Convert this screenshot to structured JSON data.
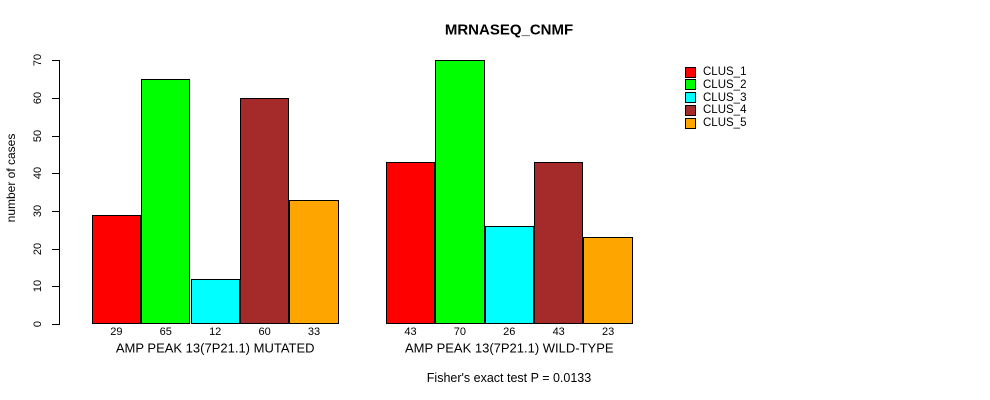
{
  "chart_data": {
    "type": "bar",
    "title": "MRNASEQ_CNMF",
    "ylabel": "number of cases",
    "xlabel": "",
    "ylim": [
      0,
      70
    ],
    "yticks": [
      0,
      10,
      20,
      30,
      40,
      50,
      60,
      70
    ],
    "grid": false,
    "legend_position": "right",
    "bar_value_labels_shown": true,
    "categories": [
      "AMP PEAK 13(7P21.1) MUTATED",
      "AMP PEAK 13(7P21.1) WILD-TYPE"
    ],
    "series": [
      {
        "name": "CLUS_1",
        "color": "#FF0000",
        "values": [
          29,
          43
        ]
      },
      {
        "name": "CLUS_2",
        "color": "#00FF00",
        "values": [
          65,
          70
        ]
      },
      {
        "name": "CLUS_3",
        "color": "#00FFFF",
        "values": [
          12,
          26
        ]
      },
      {
        "name": "CLUS_4",
        "color": "#A52A2A",
        "values": [
          60,
          43
        ]
      },
      {
        "name": "CLUS_5",
        "color": "#FFA500",
        "values": [
          33,
          23
        ]
      }
    ],
    "annotation": "Fisher's exact test P = 0.0133"
  }
}
